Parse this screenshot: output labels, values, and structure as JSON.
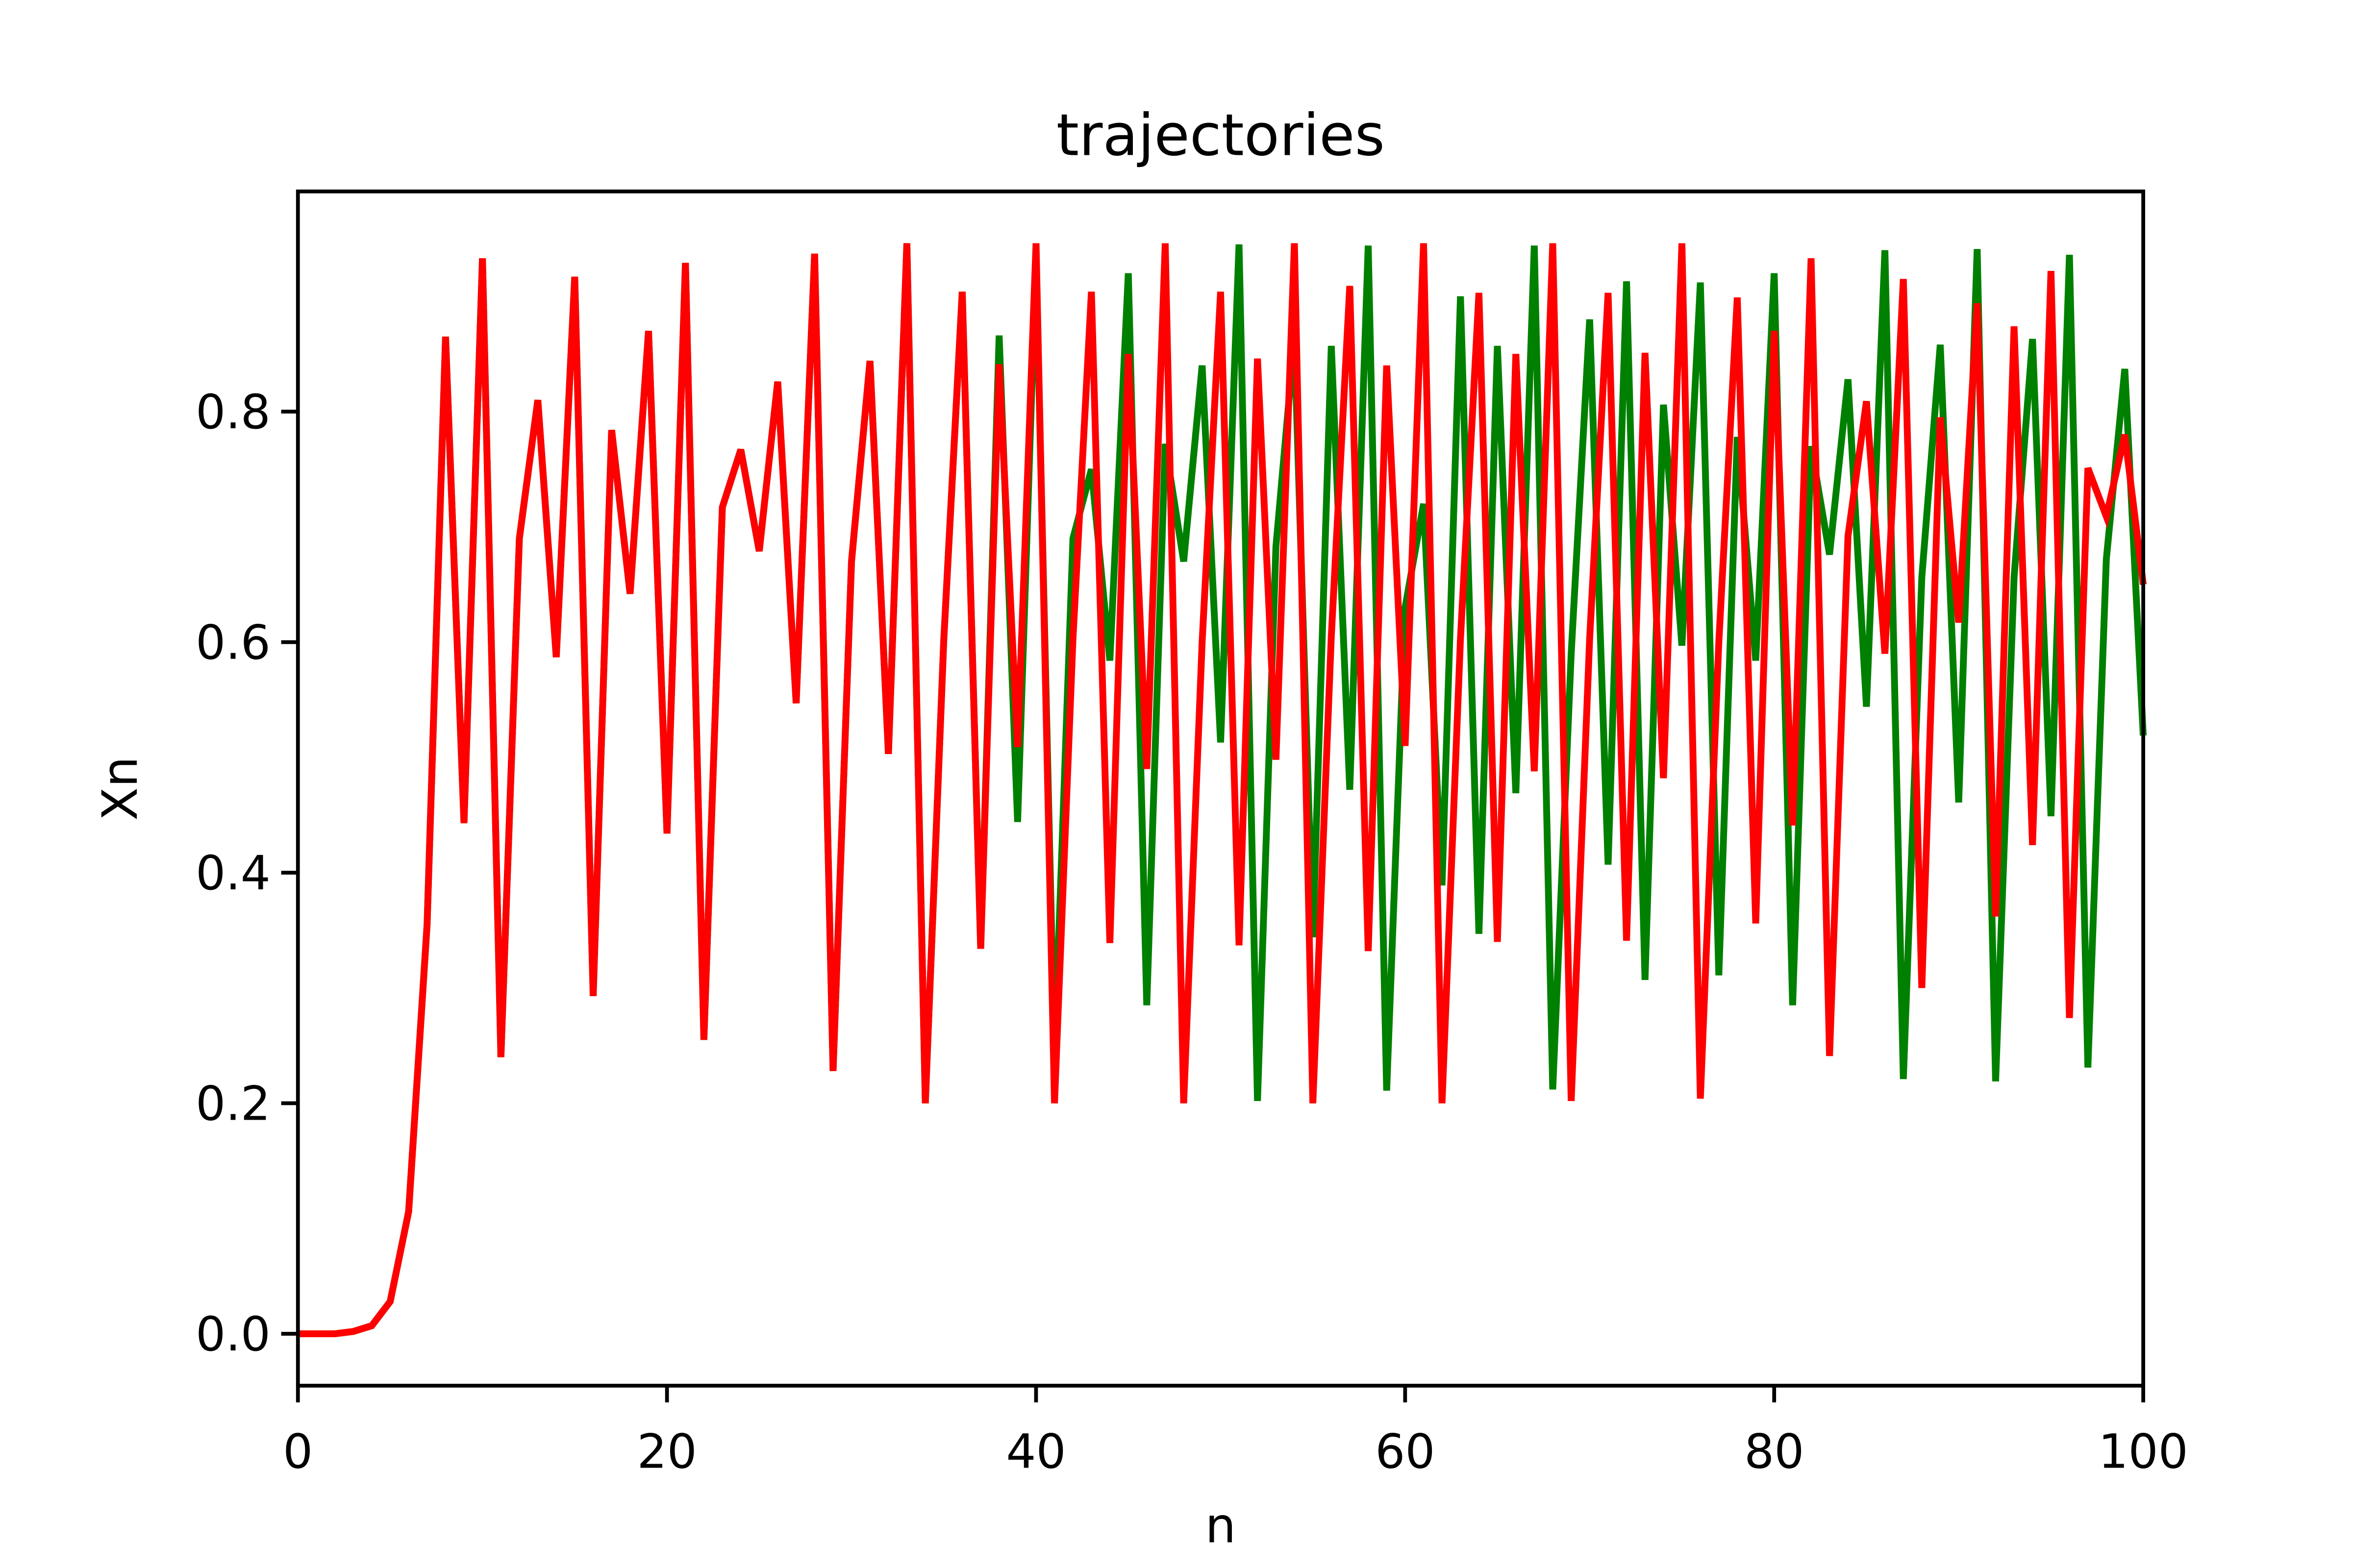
{
  "chart_data": {
    "type": "line",
    "title": "trajectories",
    "x_label": "n",
    "y_label": "Xn",
    "x": [
      0,
      1,
      2,
      3,
      4,
      5,
      6,
      7,
      8,
      9,
      10,
      11,
      12,
      13,
      14,
      15,
      16,
      17,
      18,
      19,
      20,
      21,
      22,
      23,
      24,
      25,
      26,
      27,
      28,
      29,
      30,
      31,
      32,
      33,
      34,
      35,
      36,
      37,
      38,
      39,
      40,
      41,
      42,
      43,
      44,
      45,
      46,
      47,
      48,
      49,
      50,
      51,
      52,
      53,
      54,
      55,
      56,
      57,
      58,
      59,
      60,
      61,
      62,
      63,
      64,
      65,
      66,
      67,
      68,
      69,
      70,
      71,
      72,
      73,
      74,
      75,
      76,
      77,
      78,
      79,
      80,
      81,
      82,
      83,
      84,
      85,
      86,
      87,
      88,
      89,
      90,
      91,
      92,
      93,
      94,
      95,
      96,
      97,
      98,
      99,
      100
    ],
    "series": [
      {
        "color": "#008000",
        "values": [
          0,
          0,
          0,
          0.002,
          0.007,
          0.028,
          0.106,
          0.355,
          0.865,
          0.443,
          0.933,
          0.24,
          0.69,
          0.81,
          0.587,
          0.917,
          0.293,
          0.784,
          0.642,
          0.87,
          0.434,
          0.929,
          0.255,
          0.717,
          0.767,
          0.679,
          0.826,
          0.547,
          0.937,
          0.228,
          0.67,
          0.844,
          0.503,
          0.946,
          0.2,
          0.602,
          0.904,
          0.334,
          0.866,
          0.444,
          0.933,
          0.24,
          0.69,
          0.75,
          0.584,
          0.92,
          0.285,
          0.772,
          0.67,
          0.84,
          0.513,
          0.945,
          0.202,
          0.683,
          0.863,
          0.344,
          0.857,
          0.472,
          0.944,
          0.211,
          0.63,
          0.72,
          0.389,
          0.9,
          0.347,
          0.857,
          0.469,
          0.944,
          0.212,
          0.59,
          0.88,
          0.407,
          0.913,
          0.307,
          0.806,
          0.597,
          0.912,
          0.311,
          0.778,
          0.584,
          0.92,
          0.285,
          0.77,
          0.676,
          0.828,
          0.544,
          0.94,
          0.221,
          0.656,
          0.858,
          0.461,
          0.941,
          0.219,
          0.656,
          0.863,
          0.449,
          0.936,
          0.231,
          0.672,
          0.837,
          0.519
        ]
      },
      {
        "color": "#ff0000",
        "values": [
          0,
          0,
          0,
          0.002,
          0.007,
          0.028,
          0.106,
          0.355,
          0.865,
          0.443,
          0.933,
          0.24,
          0.69,
          0.81,
          0.587,
          0.917,
          0.293,
          0.784,
          0.642,
          0.87,
          0.434,
          0.929,
          0.255,
          0.717,
          0.767,
          0.679,
          0.826,
          0.547,
          0.937,
          0.228,
          0.67,
          0.844,
          0.503,
          0.946,
          0.2,
          0.602,
          0.904,
          0.334,
          0.841,
          0.509,
          0.946,
          0.2,
          0.603,
          0.904,
          0.339,
          0.85,
          0.49,
          0.946,
          0.2,
          0.6,
          0.904,
          0.337,
          0.846,
          0.498,
          0.946,
          0.2,
          0.605,
          0.909,
          0.332,
          0.84,
          0.51,
          0.946,
          0.2,
          0.603,
          0.903,
          0.34,
          0.85,
          0.488,
          0.946,
          0.202,
          0.603,
          0.903,
          0.341,
          0.851,
          0.482,
          0.946,
          0.204,
          0.6,
          0.899,
          0.356,
          0.87,
          0.441,
          0.933,
          0.241,
          0.692,
          0.809,
          0.59,
          0.915,
          0.3,
          0.795,
          0.617,
          0.894,
          0.362,
          0.874,
          0.424,
          0.922,
          0.274,
          0.751,
          0.709,
          0.78,
          0.65
        ]
      }
    ],
    "xlim": [
      0,
      100
    ],
    "xticks": [
      0,
      20,
      40,
      60,
      80,
      100
    ],
    "ylim": [
      -0.045,
      0.991
    ],
    "yticks": [
      {
        "value": 0,
        "label": "0.0"
      },
      0.2,
      0.4,
      0.6,
      0.8
    ]
  }
}
